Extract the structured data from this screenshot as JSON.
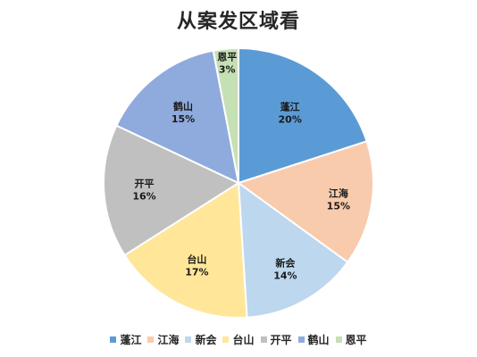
{
  "chart_data": {
    "type": "pie",
    "title": "从案发区域看",
    "categories": [
      "蓬江",
      "江海",
      "新会",
      "台山",
      "开平",
      "鹤山",
      "恩平"
    ],
    "values": [
      20,
      15,
      14,
      17,
      16,
      15,
      3
    ],
    "value_labels": [
      "20%",
      "15%",
      "14%",
      "17%",
      "16%",
      "15%",
      "3%"
    ],
    "colors": [
      "#5b9bd5",
      "#f8cbad",
      "#bdd7ee",
      "#ffe699",
      "#c0c0c0",
      "#8faadc",
      "#c5e0b4"
    ],
    "start_angle_deg": 0,
    "direction": "clockwise",
    "legend_position": "bottom",
    "data_labels": "inside"
  }
}
